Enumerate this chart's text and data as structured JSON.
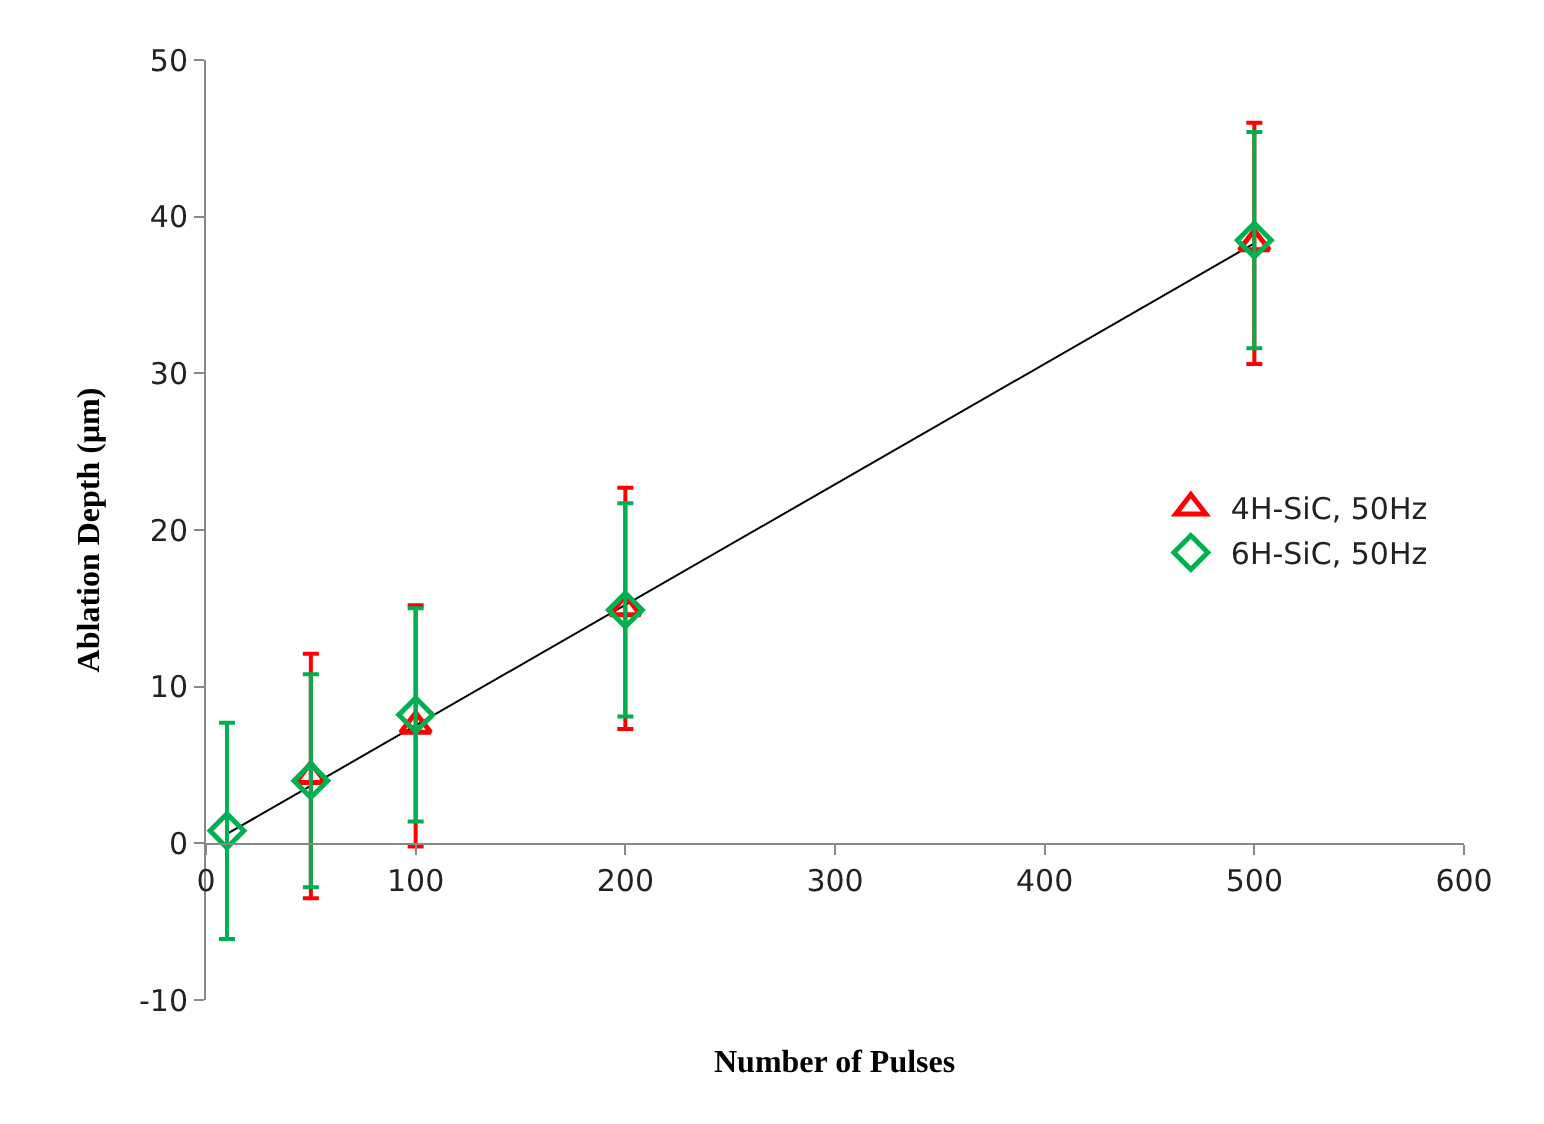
{
  "chart_data": {
    "type": "scatter",
    "xlabel": "Number of Pulses",
    "ylabel": "Ablation Depth (μm)",
    "xlim": [
      0,
      600
    ],
    "xticks": [
      0,
      100,
      200,
      300,
      400,
      500,
      600
    ],
    "ylim": [
      -10,
      50
    ],
    "yticks": [
      -10,
      0,
      10,
      20,
      30,
      40,
      50
    ],
    "legend": "right",
    "series": [
      {
        "type": "line",
        "x": [
          10,
          500
        ],
        "values": [
          0.6,
          38.3
        ],
        "color": "#000000",
        "marker": "none"
      },
      {
        "name": "4H-SiC, 50Hz",
        "x": [
          50,
          100,
          200,
          500
        ],
        "values": [
          4.3,
          7.5,
          15.0,
          38.3
        ],
        "errors": [
          7.8,
          7.7,
          7.7,
          7.7
        ],
        "color": "#ff0000",
        "marker": "triangle"
      },
      {
        "name": "6H-SiC, 50Hz",
        "x": [
          10,
          50,
          100,
          200,
          500
        ],
        "values": [
          0.8,
          4.0,
          8.2,
          14.9,
          38.5
        ],
        "errors": [
          6.9,
          6.8,
          6.8,
          6.8,
          6.9
        ],
        "color": "#00b050",
        "marker": "diamond"
      }
    ]
  }
}
